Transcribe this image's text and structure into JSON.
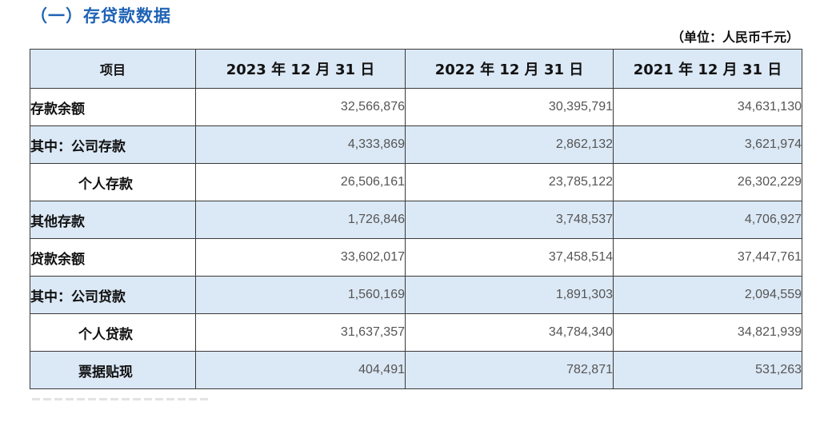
{
  "section_title": "（一）存贷款数据",
  "unit_note": "（单位：人民币千元）",
  "table": {
    "headers": [
      "项目",
      "2023 年 12 月 31 日",
      "2022 年 12 月 31 日",
      "2021 年 12 月 31 日"
    ],
    "rows": [
      {
        "label": "存款余额",
        "values": [
          "32,566,876",
          "30,395,791",
          "34,631,130"
        ]
      },
      {
        "label": "其中：公司存款",
        "values": [
          "4,333,869",
          "2,862,132",
          "3,621,974"
        ]
      },
      {
        "label": "个人存款",
        "values": [
          "26,506,161",
          "23,785,122",
          "26,302,229"
        ]
      },
      {
        "label": "其他存款",
        "values": [
          "1,726,846",
          "3,748,537",
          "4,706,927"
        ]
      },
      {
        "label": "贷款余额",
        "values": [
          "33,602,017",
          "37,458,514",
          "37,447,761"
        ]
      },
      {
        "label": "其中：公司贷款",
        "values": [
          "1,560,169",
          "1,891,303",
          "2,094,559"
        ]
      },
      {
        "label": "个人贷款",
        "values": [
          "31,637,357",
          "34,784,340",
          "34,821,939"
        ]
      },
      {
        "label": "票据贴现",
        "values": [
          "404,491",
          "782,871",
          "531,263"
        ]
      }
    ]
  },
  "colors": {
    "title": "#1f63b5",
    "header_bg": "#dbe8f5",
    "shade_bg": "#dbe8f5",
    "border": "#3a3a3a"
  }
}
